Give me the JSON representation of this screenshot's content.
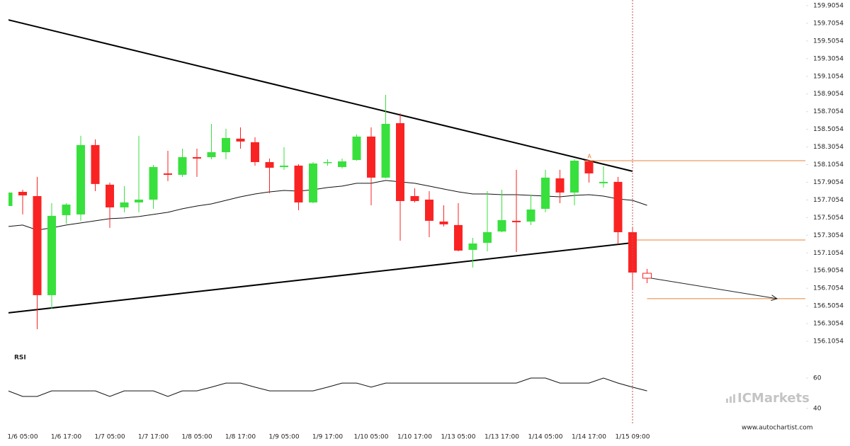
{
  "chart_data": {
    "type": "candlestick",
    "categories": [
      null,
      "1/6 05:00",
      null,
      null,
      "1/6 17:00",
      null,
      null,
      "1/7 05:00",
      null,
      null,
      "1/7 17:00",
      null,
      null,
      "1/8 05:00",
      null,
      null,
      "1/8 17:00",
      null,
      null,
      "1/9 05:00",
      null,
      null,
      "1/9 17:00",
      null,
      null,
      "1/10 05:00",
      null,
      null,
      "1/10 17:00",
      null,
      null,
      "1/13 05:00",
      null,
      null,
      "1/13 17:00",
      null,
      null,
      "1/14 05:00",
      null,
      null,
      "1/14 17:00",
      null,
      null,
      "1/15 09:00",
      null
    ],
    "open": [
      157.637,
      157.797,
      157.749,
      156.627,
      157.533,
      157.541,
      158.327,
      157.878,
      157.621,
      157.677,
      157.709,
      158.006,
      157.99,
      158.19,
      158.19,
      158.246,
      158.399,
      158.359,
      158.134,
      158.078,
      158.094,
      157.677,
      158.126,
      158.078,
      158.158,
      158.423,
      157.958,
      158.575,
      157.749,
      157.709,
      157.461,
      157.421,
      157.14,
      157.22,
      157.348,
      157.469,
      157.461,
      157.605,
      157.95,
      157.789,
      158.142,
      157.894,
      157.91,
      157.34,
      156.875
    ],
    "high": [
      157.821,
      157.821,
      157.966,
      157.669,
      157.669,
      158.431,
      158.391,
      157.902,
      157.862,
      158.431,
      158.102,
      158.262,
      158.286,
      158.286,
      158.567,
      158.511,
      158.527,
      158.415,
      158.174,
      158.302,
      158.11,
      158.134,
      158.166,
      158.174,
      158.447,
      158.527,
      158.895,
      158.687,
      157.837,
      157.805,
      157.645,
      157.669,
      157.276,
      157.805,
      157.821,
      158.046,
      157.765,
      158.046,
      158.046,
      158.166,
      158.15,
      158.086,
      157.966,
      157.389,
      156.924
    ],
    "low": [
      157.637,
      157.541,
      156.242,
      156.475,
      157.437,
      157.469,
      157.805,
      157.389,
      157.565,
      157.565,
      157.605,
      157.918,
      157.966,
      157.966,
      158.166,
      158.166,
      158.286,
      158.094,
      157.781,
      158.046,
      157.589,
      157.669,
      158.094,
      158.062,
      158.15,
      157.645,
      157.95,
      157.244,
      157.677,
      157.284,
      157.405,
      157.124,
      156.94,
      157.124,
      157.34,
      157.116,
      157.421,
      157.565,
      157.669,
      157.645,
      157.902,
      157.846,
      157.204,
      156.699,
      156.763
    ],
    "close": [
      157.789,
      157.757,
      156.627,
      157.525,
      157.653,
      158.327,
      157.886,
      157.621,
      157.677,
      157.709,
      158.078,
      157.99,
      158.19,
      158.174,
      158.246,
      158.407,
      158.367,
      158.134,
      158.07,
      158.094,
      157.677,
      158.118,
      158.134,
      158.142,
      158.423,
      157.958,
      158.567,
      157.693,
      157.693,
      157.469,
      157.429,
      157.132,
      157.212,
      157.34,
      157.477,
      157.453,
      157.597,
      157.958,
      157.789,
      158.15,
      158.006,
      157.91,
      157.34,
      156.883,
      156.819
    ],
    "up_color": "#38e03d",
    "down_color": "#fa2323",
    "moving_average": [
      157.405,
      157.421,
      157.364,
      157.389,
      157.421,
      157.445,
      157.469,
      157.493,
      157.501,
      157.517,
      157.541,
      157.565,
      157.605,
      157.637,
      157.661,
      157.701,
      157.741,
      157.773,
      157.797,
      157.813,
      157.805,
      157.821,
      157.846,
      157.862,
      157.894,
      157.894,
      157.926,
      157.91,
      157.894,
      157.862,
      157.829,
      157.797,
      157.773,
      157.773,
      157.765,
      157.765,
      157.757,
      157.749,
      157.741,
      157.757,
      157.765,
      157.749,
      157.717,
      157.701,
      157.645
    ],
    "trendlines": [
      {
        "x": [
          0,
          43
        ],
        "values": [
          159.745,
          158.03
        ]
      },
      {
        "x": [
          0,
          43
        ],
        "values": [
          156.427,
          157.22
        ]
      }
    ],
    "levels": [
      158.15,
      157.252,
      156.587
    ],
    "level_color": "#e8823a",
    "pattern_label": "A",
    "ylim": [
      156.1054,
      159.9054
    ],
    "yticks": [
      159.9054,
      159.7054,
      159.5054,
      159.3054,
      159.1054,
      158.9054,
      158.7054,
      158.5054,
      158.3054,
      158.1054,
      157.9054,
      157.7054,
      157.5054,
      157.3054,
      157.1054,
      156.9054,
      156.7054,
      156.5054,
      156.3054,
      156.1054
    ],
    "rsi": {
      "title": "RSI",
      "ylim": [
        40,
        60
      ],
      "yticks": [
        60,
        40
      ],
      "values": [
        51.6,
        47.9,
        47.9,
        51.6,
        51.6,
        51.6,
        51.6,
        47.9,
        51.6,
        51.6,
        51.6,
        47.9,
        51.6,
        51.6,
        54.0,
        56.7,
        56.7,
        54.0,
        51.6,
        51.6,
        51.6,
        51.6,
        54.0,
        56.7,
        56.7,
        54.0,
        56.7,
        56.7,
        56.7,
        56.7,
        56.7,
        56.7,
        56.7,
        56.7,
        56.7,
        56.7,
        60,
        60,
        56.7,
        56.7,
        56.7,
        60,
        56.7,
        54.0,
        51.6
      ]
    },
    "brand": "ICMarkets",
    "source": "www.autochartist.com"
  }
}
